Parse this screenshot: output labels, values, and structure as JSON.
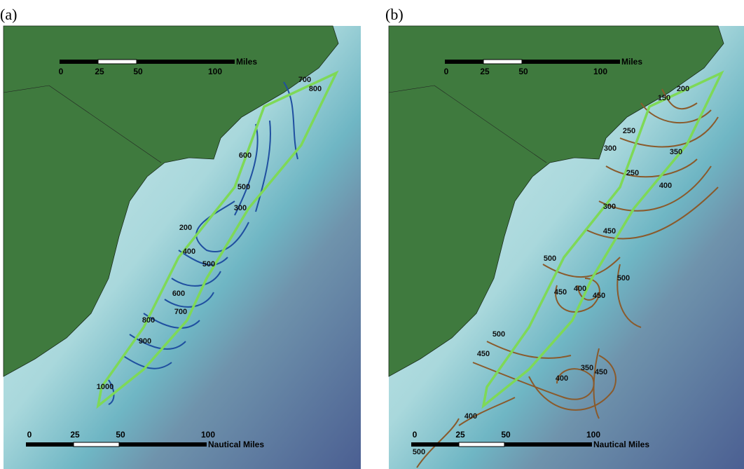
{
  "panels": [
    {
      "label": "(a)",
      "miles_scale": {
        "ticks": [
          "0",
          "25",
          "50",
          "100"
        ],
        "unit": "Miles"
      },
      "nautical_scale": {
        "ticks": [
          "0",
          "25",
          "50",
          "100"
        ],
        "unit": "Nautical Miles"
      },
      "contour_labels": [
        "700",
        "800",
        "600",
        "500",
        "300",
        "200",
        "400",
        "500",
        "600",
        "700",
        "800",
        "900",
        "1000"
      ]
    },
    {
      "label": "(b)",
      "miles_scale": {
        "ticks": [
          "0",
          "25",
          "50",
          "100"
        ],
        "unit": "Miles"
      },
      "nautical_scale": {
        "ticks": [
          "0",
          "25",
          "50",
          "100"
        ],
        "unit": "Nautical Miles"
      },
      "contour_labels": [
        "150",
        "200",
        "250",
        "300",
        "350",
        "250",
        "400",
        "300",
        "450",
        "500",
        "500",
        "450",
        "400",
        "450",
        "500",
        "450",
        "350",
        "400",
        "450",
        "400",
        "500"
      ]
    }
  ]
}
